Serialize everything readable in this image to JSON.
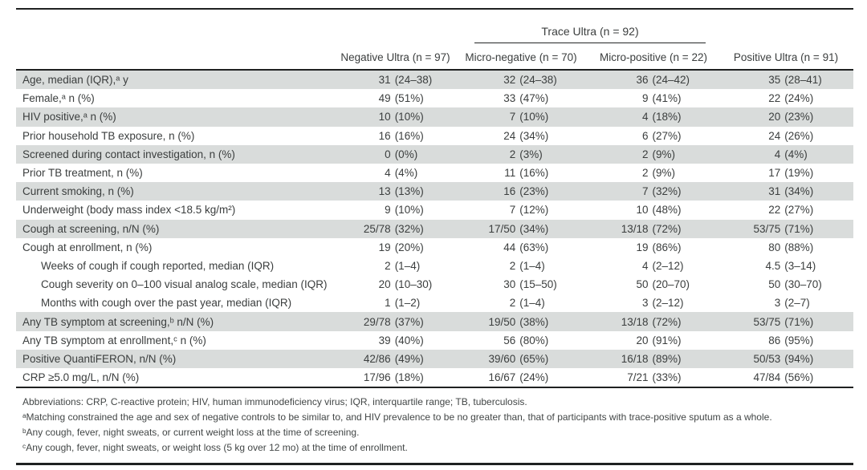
{
  "table": {
    "group_header": {
      "label": "Trace Ultra (n = 92)"
    },
    "columns": [
      {
        "label": "Negative Ultra (n = 97)"
      },
      {
        "label": "Micro-negative (n = 70)"
      },
      {
        "label": "Micro-positive (n = 22)"
      },
      {
        "label": "Positive Ultra (n = 91)"
      }
    ],
    "rows": [
      {
        "label": "Age, median (IQR),ᵃ y",
        "indent": false,
        "values": [
          "31 (24–38)",
          "32 (24–38)",
          "36 (24–42)",
          "35 (28–41)"
        ]
      },
      {
        "label": "Female,ᵃ n (%)",
        "indent": false,
        "values": [
          "49 (51%)",
          "33 (47%)",
          "9 (41%)",
          "22 (24%)"
        ]
      },
      {
        "label": "HIV positive,ᵃ n (%)",
        "indent": false,
        "values": [
          "10 (10%)",
          "7 (10%)",
          "4 (18%)",
          "20 (23%)"
        ]
      },
      {
        "label": "Prior household TB exposure, n (%)",
        "indent": false,
        "values": [
          "16 (16%)",
          "24 (34%)",
          "6 (27%)",
          "24 (26%)"
        ]
      },
      {
        "label": "Screened during contact investigation, n (%)",
        "indent": false,
        "values": [
          "0 (0%)",
          "2 (3%)",
          "2 (9%)",
          "4 (4%)"
        ]
      },
      {
        "label": "Prior TB treatment, n (%)",
        "indent": false,
        "values": [
          "4 (4%)",
          "11 (16%)",
          "2 (9%)",
          "17 (19%)"
        ]
      },
      {
        "label": "Current smoking, n (%)",
        "indent": false,
        "values": [
          "13 (13%)",
          "16 (23%)",
          "7 (32%)",
          "31 (34%)"
        ]
      },
      {
        "label": "Underweight (body mass index <18.5 kg/m²)",
        "indent": false,
        "values": [
          "9 (10%)",
          "7 (12%)",
          "10 (48%)",
          "22 (27%)"
        ]
      },
      {
        "label": "Cough at screening, n/N (%)",
        "indent": false,
        "values": [
          "25/78 (32%)",
          "17/50 (34%)",
          "13/18 (72%)",
          "53/75 (71%)"
        ]
      },
      {
        "label": "Cough at enrollment, n (%)",
        "indent": false,
        "values": [
          "19 (20%)",
          "44 (63%)",
          "19 (86%)",
          "80 (88%)"
        ]
      },
      {
        "label": "Weeks of cough if cough reported, median (IQR)",
        "indent": true,
        "values": [
          "2 (1–4)",
          "2 (1–4)",
          "4 (2–12)",
          "4.5 (3–14)"
        ]
      },
      {
        "label": "Cough severity on 0–100 visual analog scale, median (IQR)",
        "indent": true,
        "values": [
          "20 (10–30)",
          "30 (15–50)",
          "50 (20–70)",
          "50 (30–70)"
        ]
      },
      {
        "label": "Months with cough over the past year, median (IQR)",
        "indent": true,
        "values": [
          "1 (1–2)",
          "2 (1–4)",
          "3 (2–12)",
          "3 (2–7)"
        ]
      },
      {
        "label": "Any TB symptom at screening,ᵇ n/N (%)",
        "indent": false,
        "values": [
          "29/78 (37%)",
          "19/50 (38%)",
          "13/18 (72%)",
          "53/75 (71%)"
        ]
      },
      {
        "label": "Any TB symptom at enrollment,ᶜ n (%)",
        "indent": false,
        "values": [
          "39 (40%)",
          "56 (80%)",
          "20 (91%)",
          "86 (95%)"
        ]
      },
      {
        "label": "Positive QuantiFERON, n/N (%)",
        "indent": false,
        "values": [
          "42/86 (49%)",
          "39/60 (65%)",
          "16/18 (89%)",
          "50/53 (94%)"
        ]
      },
      {
        "label": "CRP ≥5.0 mg/L, n/N (%)",
        "indent": false,
        "values": [
          "17/96 (18%)",
          "16/67 (24%)",
          "7/21 (33%)",
          "47/84 (56%)"
        ]
      }
    ],
    "footnotes": [
      "Abbreviations: CRP, C-reactive protein; HIV, human immunodeficiency virus; IQR, interquartile range; TB, tuberculosis.",
      "ᵃMatching constrained the age and sex of negative controls to be similar to, and HIV prevalence to be no greater than, that of participants with trace-positive sputum as a whole.",
      "ᵇAny cough, fever, night sweats, or current weight loss at the time of screening.",
      "ᶜAny cough, fever, night sweats, or weight loss (5 kg over 12 mo) at the time of enrollment."
    ],
    "shading_color": "#d9dcdb",
    "rule_color": "#1f2121"
  }
}
